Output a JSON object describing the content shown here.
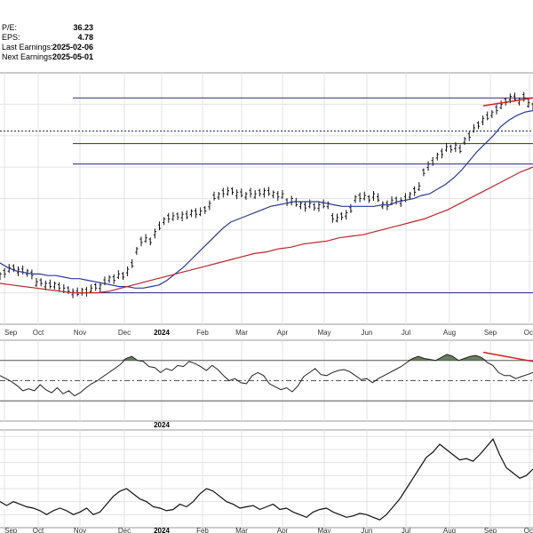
{
  "info": [
    {
      "label": "P/E:",
      "value": "36.23"
    },
    {
      "label": "EPS:",
      "value": "4.78"
    },
    {
      "label": "Last Earnings:",
      "value": "2025-02-06"
    },
    {
      "label": "Next Earnings:",
      "value": "2025-05-01"
    }
  ],
  "colors": {
    "price": "#111111",
    "ma_short": "#2a3a94",
    "ma_long": "#c0252c",
    "levels": "#28287a",
    "trendline": "#d92020",
    "oscillator_fill": "#4f6b3f",
    "grid": "#e3e3e3"
  },
  "chart_data": [
    {
      "type": "line",
      "panel": "price",
      "x_ticks": [
        "Sep",
        "Oct",
        "Nov",
        "Dec",
        "2024",
        "Feb",
        "Mar",
        "Apr",
        "May",
        "Jun",
        "Jul",
        "Aug",
        "Sep",
        "Oct"
      ],
      "bold_ticks": [
        "2024"
      ],
      "grid": true,
      "series": [
        {
          "role": "price",
          "style": "ohlc-bars",
          "values": [
            31,
            33,
            35,
            36,
            34,
            34,
            33,
            32,
            26,
            27,
            25,
            25,
            25,
            24,
            22,
            22,
            20,
            20,
            21,
            21,
            22,
            24,
            24,
            27,
            29,
            29,
            31,
            31,
            34,
            38,
            47,
            53,
            54,
            53,
            58,
            62,
            66,
            68,
            68,
            69,
            69,
            69,
            71,
            71,
            71,
            73,
            76,
            81,
            82,
            84,
            84,
            85,
            83,
            83,
            82,
            84,
            82,
            84,
            84,
            84,
            83,
            82,
            82,
            78,
            79,
            77,
            76,
            75,
            76,
            75,
            75,
            76,
            76,
            68,
            67,
            69,
            70,
            73,
            80,
            81,
            81,
            80,
            82,
            80,
            76,
            76,
            78,
            79,
            78,
            80,
            82,
            85,
            87,
            97,
            101,
            103,
            107,
            109,
            112,
            112,
            113,
            111,
            117,
            120,
            124,
            127,
            130,
            132,
            134,
            137,
            139,
            142,
            144,
            144,
            142,
            145,
            140,
            139
          ]
        },
        {
          "role": "ma_short",
          "values": [
            39,
            36,
            34,
            33,
            32,
            32,
            31,
            31,
            30,
            29,
            29,
            28,
            27,
            26,
            25,
            24,
            24,
            23,
            23,
            24,
            25,
            28,
            32,
            36,
            41,
            46,
            51,
            56,
            61,
            65,
            67,
            69,
            71,
            73,
            75,
            76,
            77,
            78,
            78,
            78,
            78,
            77,
            76,
            75,
            75,
            75,
            75,
            75,
            76,
            76,
            78,
            79,
            80,
            82,
            83,
            86,
            89,
            93,
            98,
            104,
            110,
            115,
            120,
            126,
            130,
            133,
            135,
            136
          ]
        },
        {
          "role": "ma_long",
          "values": [
            26,
            25,
            24,
            23,
            22,
            21,
            20,
            20,
            20,
            21,
            23,
            25,
            27,
            29,
            31,
            33,
            35,
            37,
            39,
            41,
            43,
            45,
            46,
            48,
            49,
            51,
            52,
            53,
            55,
            56,
            57,
            59,
            61,
            63,
            65,
            67,
            70,
            73,
            77,
            81,
            85,
            89,
            93,
            97,
            100
          ]
        }
      ],
      "levels": [
        144,
        123,
        115,
        102,
        20
      ],
      "trendlines": [
        {
          "from": {
            "x": "Aug",
            "y": 139
          },
          "to": {
            "x": "Oct",
            "y": 144
          }
        }
      ]
    },
    {
      "type": "line",
      "panel": "oscillator",
      "x_ticks": [
        "2024"
      ],
      "grid": true,
      "reference_levels": [
        70,
        50,
        30
      ],
      "series": [
        {
          "role": "oscillator",
          "values": [
            55,
            52,
            49,
            45,
            40,
            42,
            40,
            46,
            41,
            38,
            43,
            37,
            40,
            35,
            38,
            43,
            47,
            50,
            54,
            58,
            62,
            66,
            72,
            74,
            70,
            69,
            64,
            63,
            58,
            62,
            60,
            65,
            64,
            69,
            67,
            64,
            60,
            65,
            61,
            55,
            50,
            52,
            48,
            47,
            55,
            58,
            55,
            47,
            44,
            41,
            43,
            39,
            45,
            54,
            58,
            62,
            56,
            55,
            58,
            60,
            61,
            59,
            55,
            51,
            52,
            48,
            52,
            55,
            58,
            61,
            64,
            68,
            72,
            74,
            72,
            71,
            70,
            73,
            76,
            74,
            70,
            72,
            74,
            75,
            73,
            68,
            65,
            58,
            55,
            55,
            52,
            54,
            56,
            58
          ]
        }
      ],
      "trendlines": [
        {
          "from": {
            "x": "Aug",
            "y": 78
          },
          "to": {
            "x": "Oct",
            "y": 69
          }
        }
      ]
    },
    {
      "type": "line",
      "panel": "relative",
      "x_ticks": [
        "Sep",
        "Oct",
        "Nov",
        "Dec",
        "2024",
        "Feb",
        "Mar",
        "Apr",
        "May",
        "Jun",
        "Jul",
        "Aug",
        "Sep",
        "Oct"
      ],
      "bold_ticks": [
        "2024"
      ],
      "grid": true,
      "series": [
        {
          "role": "relative_strength",
          "values": [
            60,
            57,
            60,
            58,
            56,
            55,
            53,
            50,
            53,
            55,
            53,
            50,
            52,
            55,
            50,
            52,
            58,
            64,
            68,
            70,
            66,
            62,
            60,
            56,
            55,
            53,
            54,
            58,
            56,
            60,
            66,
            70,
            68,
            64,
            60,
            58,
            55,
            56,
            57,
            54,
            56,
            58,
            54,
            55,
            52,
            50,
            48,
            52,
            54,
            55,
            52,
            50,
            48,
            49,
            51,
            50,
            48,
            46,
            50,
            56,
            62,
            70,
            78,
            86,
            94,
            98,
            104,
            100,
            96,
            92,
            93,
            91,
            96,
            102,
            108,
            96,
            86,
            82,
            78,
            80,
            85
          ]
        }
      ]
    }
  ]
}
